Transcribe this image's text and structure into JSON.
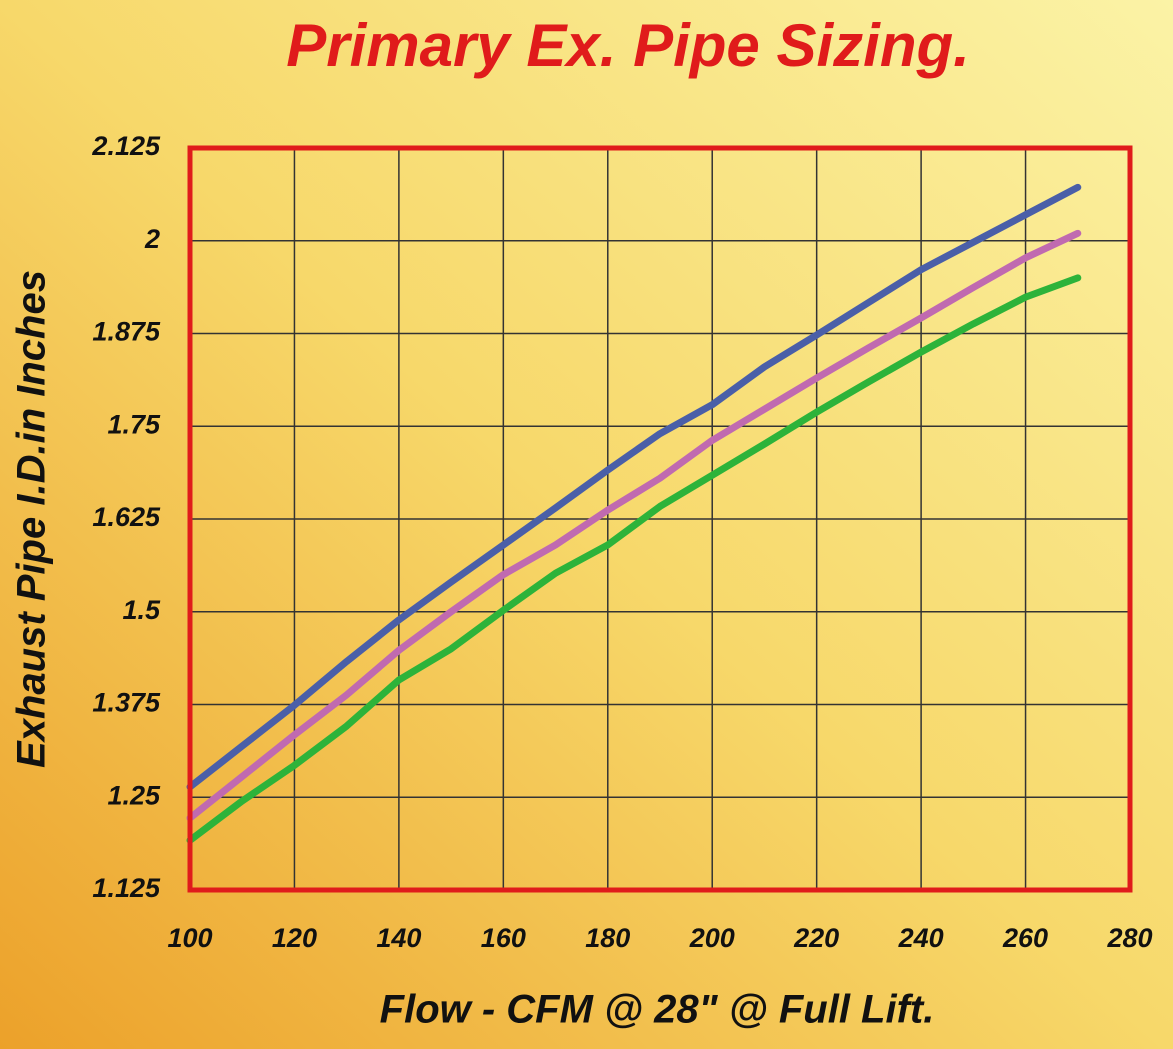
{
  "chart_data": {
    "type": "line",
    "title": "Primary Ex. Pipe Sizing.",
    "x_label": "Flow - CFM @ 28\" @ Full Lift.",
    "y_label": "Exhaust Pipe I.D.in Inches",
    "x": [
      100,
      110,
      120,
      130,
      140,
      150,
      160,
      170,
      180,
      190,
      200,
      210,
      220,
      230,
      240,
      250,
      260,
      270
    ],
    "series": [
      {
        "color": "#4a5fa8",
        "values": [
          1.264,
          1.319,
          1.374,
          1.433,
          1.489,
          1.54,
          1.59,
          1.64,
          1.691,
          1.74,
          1.779,
          1.83,
          1.873,
          1.917,
          1.961,
          1.998,
          2.035,
          2.072
        ]
      },
      {
        "color": "#c06ab0",
        "values": [
          1.222,
          1.278,
          1.334,
          1.388,
          1.448,
          1.5,
          1.55,
          1.59,
          1.637,
          1.68,
          1.731,
          1.773,
          1.815,
          1.856,
          1.896,
          1.937,
          1.977,
          2.01
        ]
      },
      {
        "color": "#2db33a",
        "values": [
          1.192,
          1.245,
          1.293,
          1.346,
          1.408,
          1.45,
          1.502,
          1.552,
          1.59,
          1.642,
          1.684,
          1.726,
          1.769,
          1.81,
          1.85,
          1.888,
          1.924,
          1.95
        ]
      }
    ],
    "xlim": [
      100,
      280
    ],
    "ylim": [
      1.125,
      2.125
    ],
    "xticks": [
      100,
      120,
      140,
      160,
      180,
      200,
      220,
      240,
      260,
      280
    ],
    "yticks": [
      1.125,
      1.25,
      1.375,
      1.5,
      1.625,
      1.75,
      1.875,
      2,
      2.125
    ],
    "grid": true
  }
}
